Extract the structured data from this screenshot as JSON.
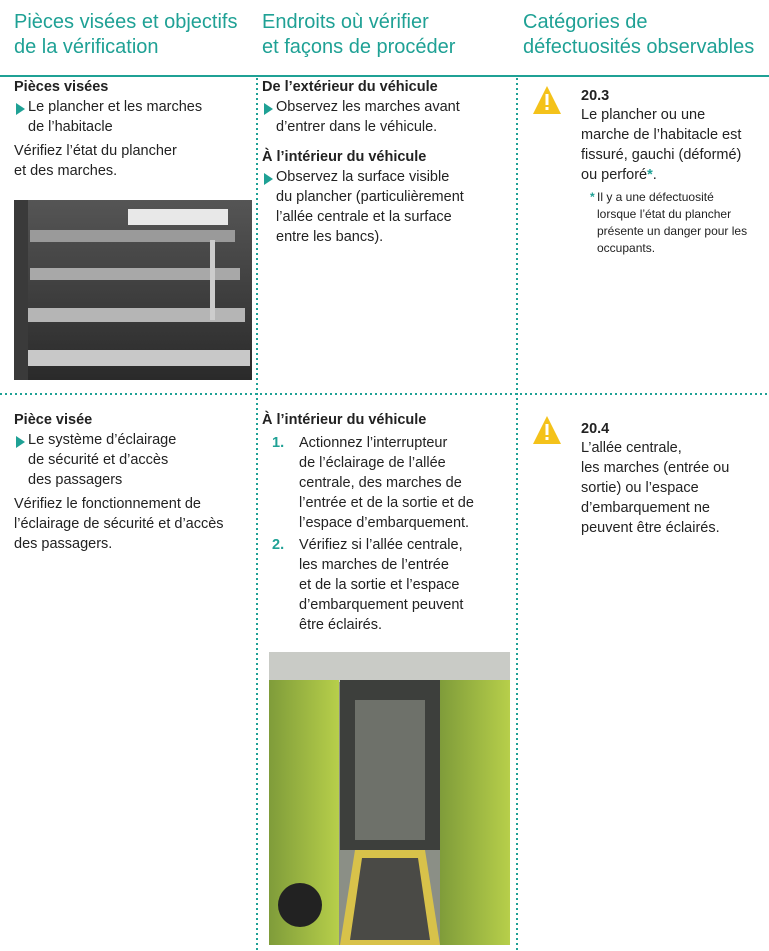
{
  "headers": [
    {
      "lines": [
        "Pièces visées et objectifs",
        "de la vérification"
      ]
    },
    {
      "lines": [
        "Endroits où vérifier",
        "et façons de procéder"
      ]
    },
    {
      "lines": [
        "Catégories de",
        "défectuosités observables"
      ]
    }
  ],
  "rows": [
    {
      "parts": {
        "heading": "Pièces visées",
        "bullet": [
          "Le plancher et les marches",
          "de l’habitacle"
        ],
        "text": [
          "Vérifiez l’état du plancher",
          "et des marches."
        ]
      },
      "method": {
        "sections": [
          {
            "heading": "De l’extérieur du véhicule",
            "bullet": [
              "Observez les marches avant",
              "d’entrer dans le véhicule."
            ]
          },
          {
            "heading": "À l’intérieur du véhicule",
            "bullet": [
              "Observez la surface visible",
              "du plancher (particulièrement",
              "l’allée centrale et la surface",
              "entre les bancs)."
            ]
          }
        ]
      },
      "defect": {
        "code": "20.3",
        "text": [
          "Le plancher ou une",
          "marche de l’habitacle est",
          "fissuré, gauchi (déformé)",
          "ou perforé"
        ],
        "mark": "*",
        "end": ".",
        "note_mark": "*",
        "note": [
          "Il y a une défectuosité",
          "lorsque l’état du plancher",
          "présente un danger pour les",
          "occupants."
        ]
      }
    },
    {
      "parts": {
        "heading": "Pièce visée",
        "bullet": [
          "Le système d’éclairage",
          "de sécurité et d’accès",
          "des passagers"
        ],
        "text": [
          "Vérifiez le fonctionnement de",
          "l’éclairage de sécurité et d’accès",
          "des passagers."
        ]
      },
      "method": {
        "heading": "À l’intérieur du véhicule",
        "items": [
          {
            "number": "1.",
            "lines": [
              "Actionnez l’interrupteur",
              "de l’éclairage de l’allée",
              "centrale, des marches de",
              "l’entrée et de la sortie et de",
              "l’espace d’embarquement."
            ]
          },
          {
            "number": "2.",
            "lines": [
              "Vérifiez si l’allée centrale,",
              "les marches de l’entrée",
              "et de la sortie et l’espace",
              "d’embarquement peuvent",
              "être éclairés."
            ]
          }
        ]
      },
      "defect": {
        "code": "20.4",
        "text": [
          "L’allée centrale,",
          "les marches (entrée ou",
          "sortie) ou l’espace",
          "d’embarquement ne",
          "peuvent être éclairés."
        ]
      }
    }
  ]
}
